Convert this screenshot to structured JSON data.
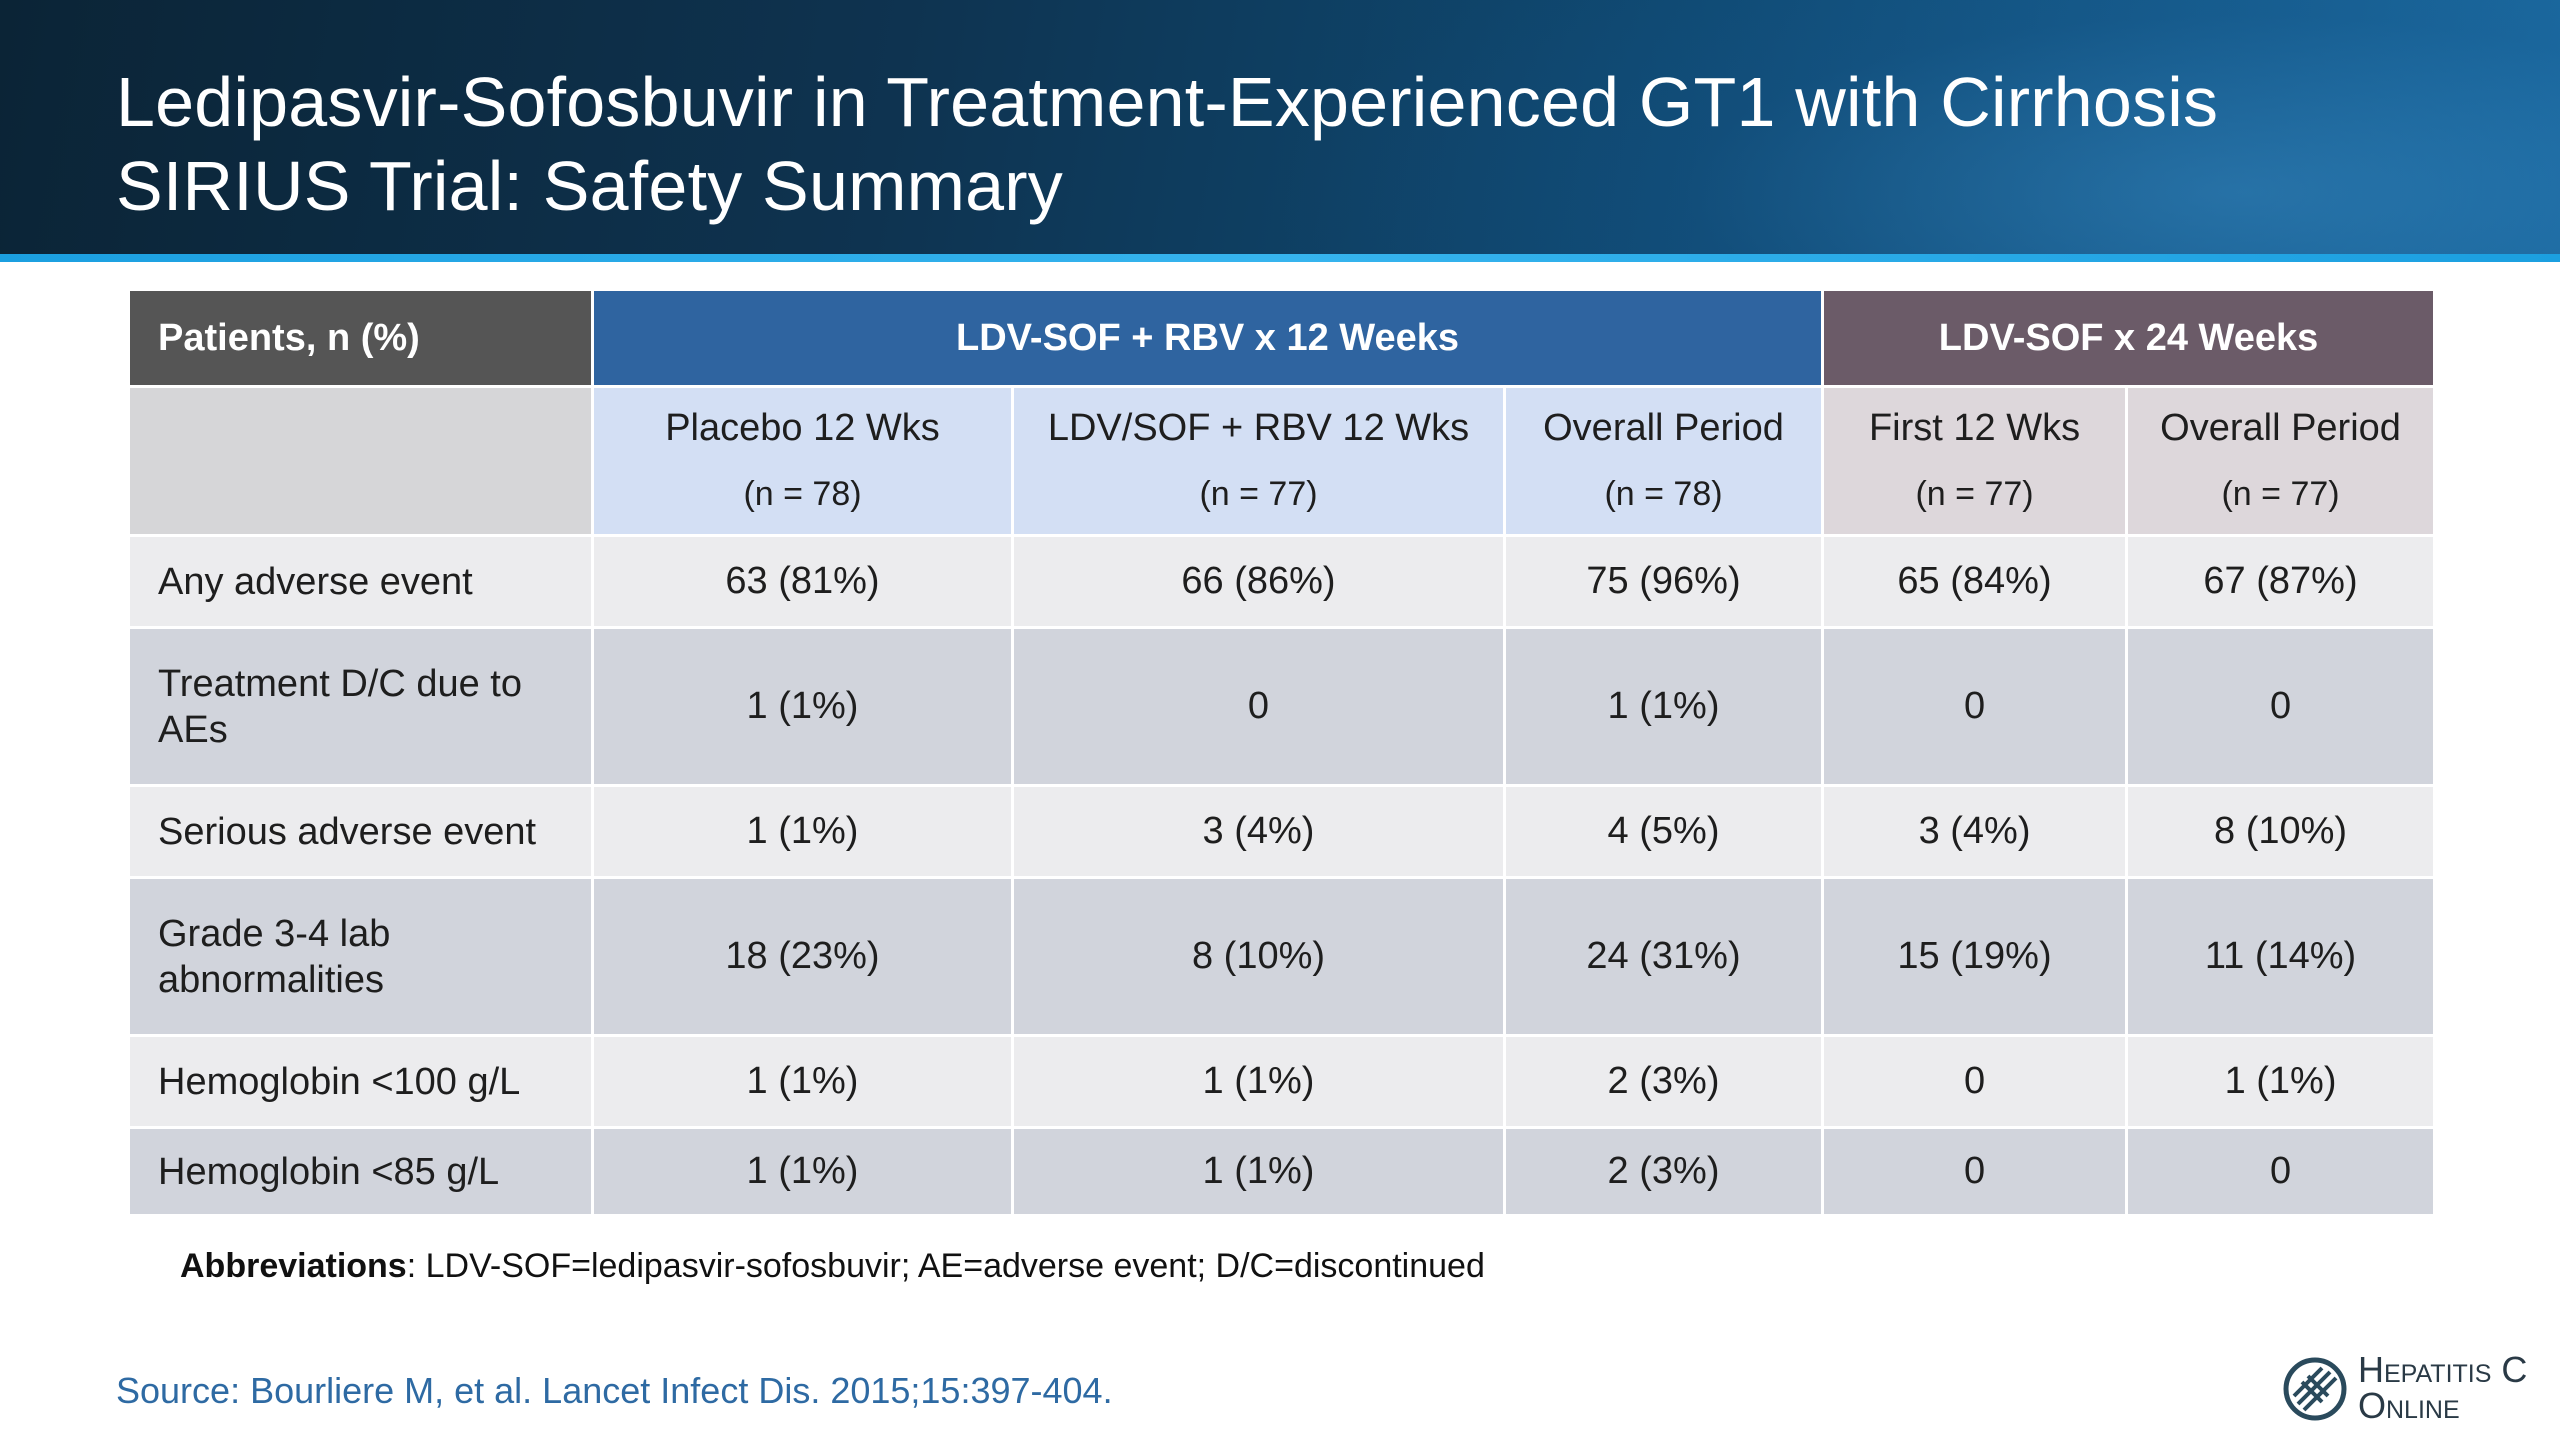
{
  "title": {
    "line1": "Ledipasvir-Sofosbuvir in Treatment-Experienced GT1 with Cirrhosis",
    "line2": "SIRIUS Trial: Safety Summary"
  },
  "table": {
    "corner_header": "Patients, n (%)",
    "group1": "LDV-SOF + RBV x 12 Weeks",
    "group2": "LDV-SOF x 24 Weeks",
    "columns": [
      {
        "label": "Placebo 12 Wks",
        "n": "(n = 78)"
      },
      {
        "label": "LDV/SOF + RBV 12 Wks",
        "n": "(n = 77)"
      },
      {
        "label": "Overall Period",
        "n": "(n = 78)"
      },
      {
        "label": "First 12 Wks",
        "n": "(n = 77)"
      },
      {
        "label": "Overall Period",
        "n": "(n = 77)"
      }
    ],
    "rows": [
      {
        "label": "Any adverse event",
        "cells": [
          "63 (81%)",
          "66 (86%)",
          "75 (96%)",
          "65 (84%)",
          "67 (87%)"
        ]
      },
      {
        "label": "Treatment D/C due to AEs",
        "cells": [
          "1 (1%)",
          "0",
          "1 (1%)",
          "0",
          "0"
        ]
      },
      {
        "label": "Serious adverse event",
        "cells": [
          "1 (1%)",
          "3 (4%)",
          "4 (5%)",
          "3 (4%)",
          "8 (10%)"
        ]
      },
      {
        "label": "Grade 3-4 lab abnormalities",
        "cells": [
          "18 (23%)",
          "8 (10%)",
          "24 (31%)",
          "15 (19%)",
          "11 (14%)"
        ]
      },
      {
        "label": "Hemoglobin <100 g/L",
        "cells": [
          "1 (1%)",
          "1 (1%)",
          "2 (3%)",
          "0",
          "1 (1%)"
        ]
      },
      {
        "label": "Hemoglobin <85 g/L",
        "cells": [
          "1 (1%)",
          "1 (1%)",
          "2 (3%)",
          "0",
          "0"
        ]
      }
    ]
  },
  "abbreviations": {
    "label": "Abbreviations",
    "text": ": LDV-SOF=ledipasvir-sofosbuvir; AE=adverse event; D/C=discontinued"
  },
  "source": "Source: Bourliere M, et al. Lancet Infect Dis. 2015;15:397-404.",
  "logo": {
    "line1": "Hepatitis C",
    "line2": "Online",
    "icon": "hepatitis-c-online-logo-icon"
  },
  "colors": {
    "banner": "#0e3350",
    "group1_header": "#2f64a0",
    "group2_header": "#6b5b68",
    "corner_header": "#555555",
    "source_text": "#2e6aa3"
  }
}
